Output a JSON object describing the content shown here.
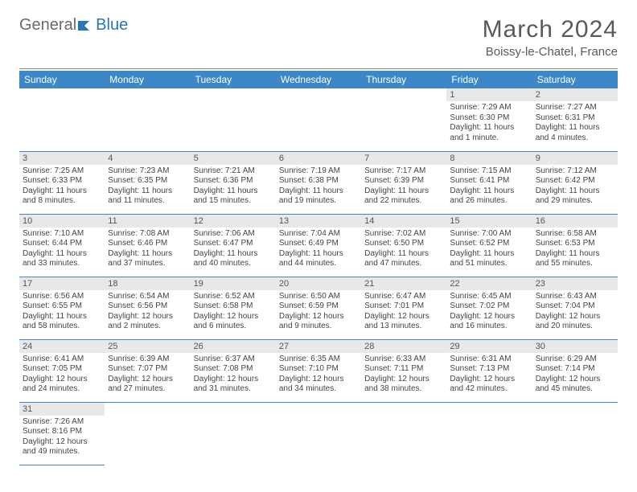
{
  "logo": {
    "text1": "General",
    "text2": "Blue"
  },
  "title": "March 2024",
  "location": "Boissy-le-Chatel, France",
  "colors": {
    "header_bg": "#3b87c8",
    "header_text": "#ffffff",
    "daynum_bg": "#e8e8e8",
    "daynum_text": "#555555",
    "cell_text": "#444444",
    "border": "#3b87c8",
    "title_color": "#5a5a5a",
    "logo_gray": "#6a6a6a",
    "logo_blue": "#2676b8"
  },
  "columns": [
    "Sunday",
    "Monday",
    "Tuesday",
    "Wednesday",
    "Thursday",
    "Friday",
    "Saturday"
  ],
  "weeks": [
    [
      null,
      null,
      null,
      null,
      null,
      {
        "n": "1",
        "sunrise": "Sunrise: 7:29 AM",
        "sunset": "Sunset: 6:30 PM",
        "daylight": "Daylight: 11 hours and 1 minute."
      },
      {
        "n": "2",
        "sunrise": "Sunrise: 7:27 AM",
        "sunset": "Sunset: 6:31 PM",
        "daylight": "Daylight: 11 hours and 4 minutes."
      }
    ],
    [
      {
        "n": "3",
        "sunrise": "Sunrise: 7:25 AM",
        "sunset": "Sunset: 6:33 PM",
        "daylight": "Daylight: 11 hours and 8 minutes."
      },
      {
        "n": "4",
        "sunrise": "Sunrise: 7:23 AM",
        "sunset": "Sunset: 6:35 PM",
        "daylight": "Daylight: 11 hours and 11 minutes."
      },
      {
        "n": "5",
        "sunrise": "Sunrise: 7:21 AM",
        "sunset": "Sunset: 6:36 PM",
        "daylight": "Daylight: 11 hours and 15 minutes."
      },
      {
        "n": "6",
        "sunrise": "Sunrise: 7:19 AM",
        "sunset": "Sunset: 6:38 PM",
        "daylight": "Daylight: 11 hours and 19 minutes."
      },
      {
        "n": "7",
        "sunrise": "Sunrise: 7:17 AM",
        "sunset": "Sunset: 6:39 PM",
        "daylight": "Daylight: 11 hours and 22 minutes."
      },
      {
        "n": "8",
        "sunrise": "Sunrise: 7:15 AM",
        "sunset": "Sunset: 6:41 PM",
        "daylight": "Daylight: 11 hours and 26 minutes."
      },
      {
        "n": "9",
        "sunrise": "Sunrise: 7:12 AM",
        "sunset": "Sunset: 6:42 PM",
        "daylight": "Daylight: 11 hours and 29 minutes."
      }
    ],
    [
      {
        "n": "10",
        "sunrise": "Sunrise: 7:10 AM",
        "sunset": "Sunset: 6:44 PM",
        "daylight": "Daylight: 11 hours and 33 minutes."
      },
      {
        "n": "11",
        "sunrise": "Sunrise: 7:08 AM",
        "sunset": "Sunset: 6:46 PM",
        "daylight": "Daylight: 11 hours and 37 minutes."
      },
      {
        "n": "12",
        "sunrise": "Sunrise: 7:06 AM",
        "sunset": "Sunset: 6:47 PM",
        "daylight": "Daylight: 11 hours and 40 minutes."
      },
      {
        "n": "13",
        "sunrise": "Sunrise: 7:04 AM",
        "sunset": "Sunset: 6:49 PM",
        "daylight": "Daylight: 11 hours and 44 minutes."
      },
      {
        "n": "14",
        "sunrise": "Sunrise: 7:02 AM",
        "sunset": "Sunset: 6:50 PM",
        "daylight": "Daylight: 11 hours and 47 minutes."
      },
      {
        "n": "15",
        "sunrise": "Sunrise: 7:00 AM",
        "sunset": "Sunset: 6:52 PM",
        "daylight": "Daylight: 11 hours and 51 minutes."
      },
      {
        "n": "16",
        "sunrise": "Sunrise: 6:58 AM",
        "sunset": "Sunset: 6:53 PM",
        "daylight": "Daylight: 11 hours and 55 minutes."
      }
    ],
    [
      {
        "n": "17",
        "sunrise": "Sunrise: 6:56 AM",
        "sunset": "Sunset: 6:55 PM",
        "daylight": "Daylight: 11 hours and 58 minutes."
      },
      {
        "n": "18",
        "sunrise": "Sunrise: 6:54 AM",
        "sunset": "Sunset: 6:56 PM",
        "daylight": "Daylight: 12 hours and 2 minutes."
      },
      {
        "n": "19",
        "sunrise": "Sunrise: 6:52 AM",
        "sunset": "Sunset: 6:58 PM",
        "daylight": "Daylight: 12 hours and 6 minutes."
      },
      {
        "n": "20",
        "sunrise": "Sunrise: 6:50 AM",
        "sunset": "Sunset: 6:59 PM",
        "daylight": "Daylight: 12 hours and 9 minutes."
      },
      {
        "n": "21",
        "sunrise": "Sunrise: 6:47 AM",
        "sunset": "Sunset: 7:01 PM",
        "daylight": "Daylight: 12 hours and 13 minutes."
      },
      {
        "n": "22",
        "sunrise": "Sunrise: 6:45 AM",
        "sunset": "Sunset: 7:02 PM",
        "daylight": "Daylight: 12 hours and 16 minutes."
      },
      {
        "n": "23",
        "sunrise": "Sunrise: 6:43 AM",
        "sunset": "Sunset: 7:04 PM",
        "daylight": "Daylight: 12 hours and 20 minutes."
      }
    ],
    [
      {
        "n": "24",
        "sunrise": "Sunrise: 6:41 AM",
        "sunset": "Sunset: 7:05 PM",
        "daylight": "Daylight: 12 hours and 24 minutes."
      },
      {
        "n": "25",
        "sunrise": "Sunrise: 6:39 AM",
        "sunset": "Sunset: 7:07 PM",
        "daylight": "Daylight: 12 hours and 27 minutes."
      },
      {
        "n": "26",
        "sunrise": "Sunrise: 6:37 AM",
        "sunset": "Sunset: 7:08 PM",
        "daylight": "Daylight: 12 hours and 31 minutes."
      },
      {
        "n": "27",
        "sunrise": "Sunrise: 6:35 AM",
        "sunset": "Sunset: 7:10 PM",
        "daylight": "Daylight: 12 hours and 34 minutes."
      },
      {
        "n": "28",
        "sunrise": "Sunrise: 6:33 AM",
        "sunset": "Sunset: 7:11 PM",
        "daylight": "Daylight: 12 hours and 38 minutes."
      },
      {
        "n": "29",
        "sunrise": "Sunrise: 6:31 AM",
        "sunset": "Sunset: 7:13 PM",
        "daylight": "Daylight: 12 hours and 42 minutes."
      },
      {
        "n": "30",
        "sunrise": "Sunrise: 6:29 AM",
        "sunset": "Sunset: 7:14 PM",
        "daylight": "Daylight: 12 hours and 45 minutes."
      }
    ],
    [
      {
        "n": "31",
        "sunrise": "Sunrise: 7:26 AM",
        "sunset": "Sunset: 8:16 PM",
        "daylight": "Daylight: 12 hours and 49 minutes."
      },
      null,
      null,
      null,
      null,
      null,
      null
    ]
  ]
}
